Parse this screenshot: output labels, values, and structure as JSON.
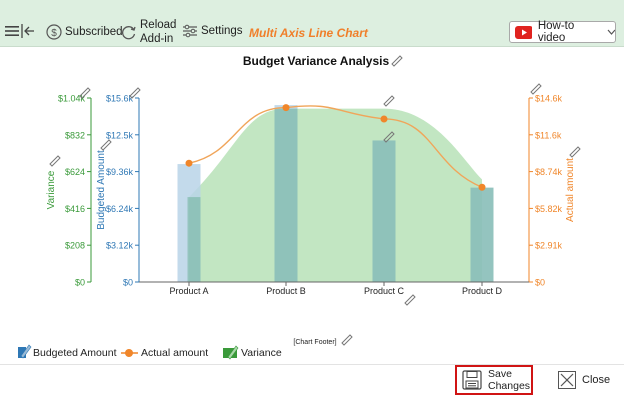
{
  "toolbar": {
    "subscribed_label": "Subscribed",
    "reload_label_1": "Reload",
    "reload_label_2": "Add-in",
    "settings_label": "Settings",
    "chart_type_title": "Multi Axis Line Chart",
    "howto_label": "How-to video"
  },
  "chart_data": {
    "type": "bar",
    "title": "Budget Variance Analysis",
    "footer": "[Chart Footer]",
    "categories": [
      "Product A",
      "Product B",
      "Product C",
      "Product D"
    ],
    "axes": {
      "variance": {
        "label": "Variance",
        "ticks": [
          "$0",
          "$208",
          "$416",
          "$624",
          "$832",
          "$1.04k"
        ],
        "max": 1040,
        "color": "#3a9a3a"
      },
      "budgeted": {
        "label": "Budgeted Amount",
        "ticks": [
          "$0",
          "$3.12k",
          "$6.24k",
          "$9.36k",
          "$12.5k",
          "$15.6k"
        ],
        "max": 15600,
        "color": "#2f78b5"
      },
      "actual": {
        "label": "Actual amount",
        "ticks": [
          "$0",
          "$2.91k",
          "$5.82k",
          "$8.74k",
          "$11.6k",
          "$14.6k"
        ],
        "max": 14560,
        "color": "#f0862a"
      }
    },
    "series": [
      {
        "name": "Budgeted Amount",
        "type": "bar",
        "axis": "budgeted",
        "values": [
          10000,
          15000,
          12000,
          8000
        ],
        "color": "#b9d3e8"
      },
      {
        "name": "Actual amount",
        "type": "line",
        "axis": "actual",
        "values": [
          9400,
          13800,
          12900,
          7500
        ],
        "color": "#f0862a"
      },
      {
        "name": "Variance",
        "type": "area",
        "axis": "variance",
        "values": [
          480,
          980,
          980,
          580
        ],
        "color": "#8fd18f"
      }
    ]
  },
  "legend": {
    "budgeted_label": "Budgeted Amount",
    "actual_label": "Actual amount",
    "variance_label": "Variance"
  },
  "buttons": {
    "save_line1": "Save",
    "save_line2": "Changes",
    "close_label": "Close"
  }
}
